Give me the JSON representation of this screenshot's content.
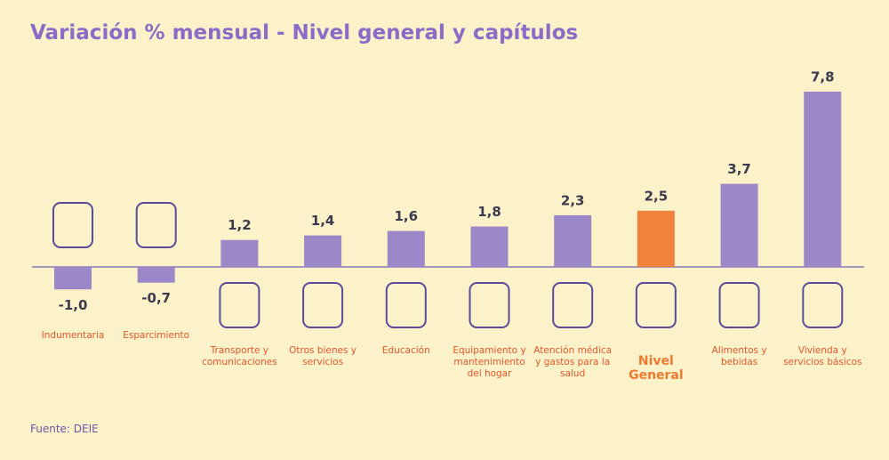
{
  "chart_data": {
    "type": "bar",
    "title": "Variación % mensual - Nivel general y capítulos",
    "categories": [
      "Indumentaria",
      "Esparcimiento",
      "Transporte y comunicaciones",
      "Otros bienes y servicios",
      "Educación",
      "Equipamiento y mantenimiento del hogar",
      "Atención médica y gastos para la salud",
      "Nivel General",
      "Alimentos y bebidas",
      "Vivienda y servicios básicos"
    ],
    "values": [
      -1.0,
      -0.7,
      1.2,
      1.4,
      1.6,
      1.8,
      2.3,
      2.5,
      3.7,
      7.8
    ],
    "value_labels": [
      "-1,0",
      "-0,7",
      "1,2",
      "1,4",
      "1,6",
      "1,8",
      "2,3",
      "2,5",
      "3,7",
      "7,8"
    ],
    "color": "#9b88c8",
    "colors": [
      "#9b88c8",
      "#9b88c8",
      "#9b88c8",
      "#9b88c8",
      "#9b88c8",
      "#9b88c8",
      "#9b88c8",
      "#f0843c",
      "#9b88c8",
      "#9b88c8"
    ],
    "source": "Fuente: DEIE"
  }
}
